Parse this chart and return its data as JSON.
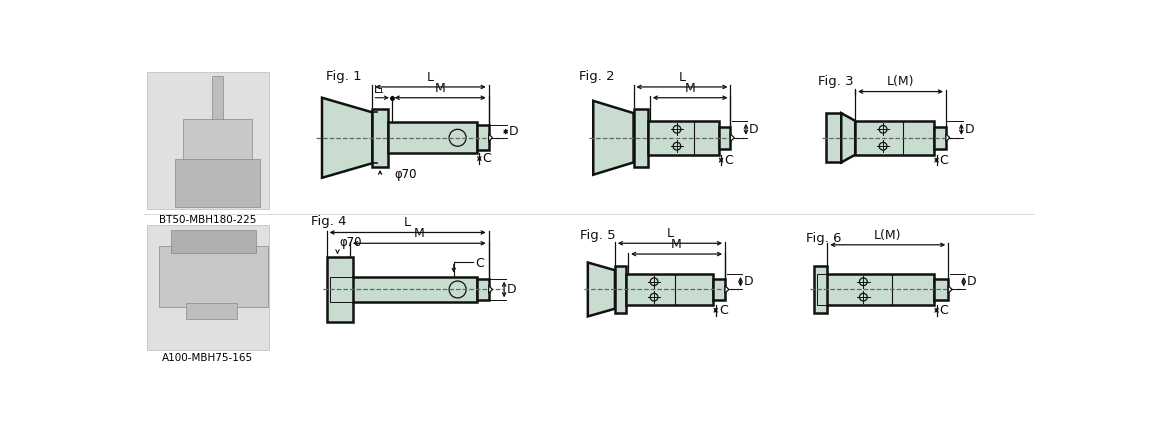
{
  "bg_color": "#ffffff",
  "fill_color": "#c8ddd0",
  "line_color": "#111111",
  "dash_color": "#666666",
  "photo_labels": [
    "BT50-MBH180-225",
    "A100-MBH75-165"
  ],
  "fig_labels": [
    "Fig. 1",
    "Fig. 2",
    "Fig. 3",
    "Fig. 4",
    "Fig. 5",
    "Fig. 6"
  ]
}
